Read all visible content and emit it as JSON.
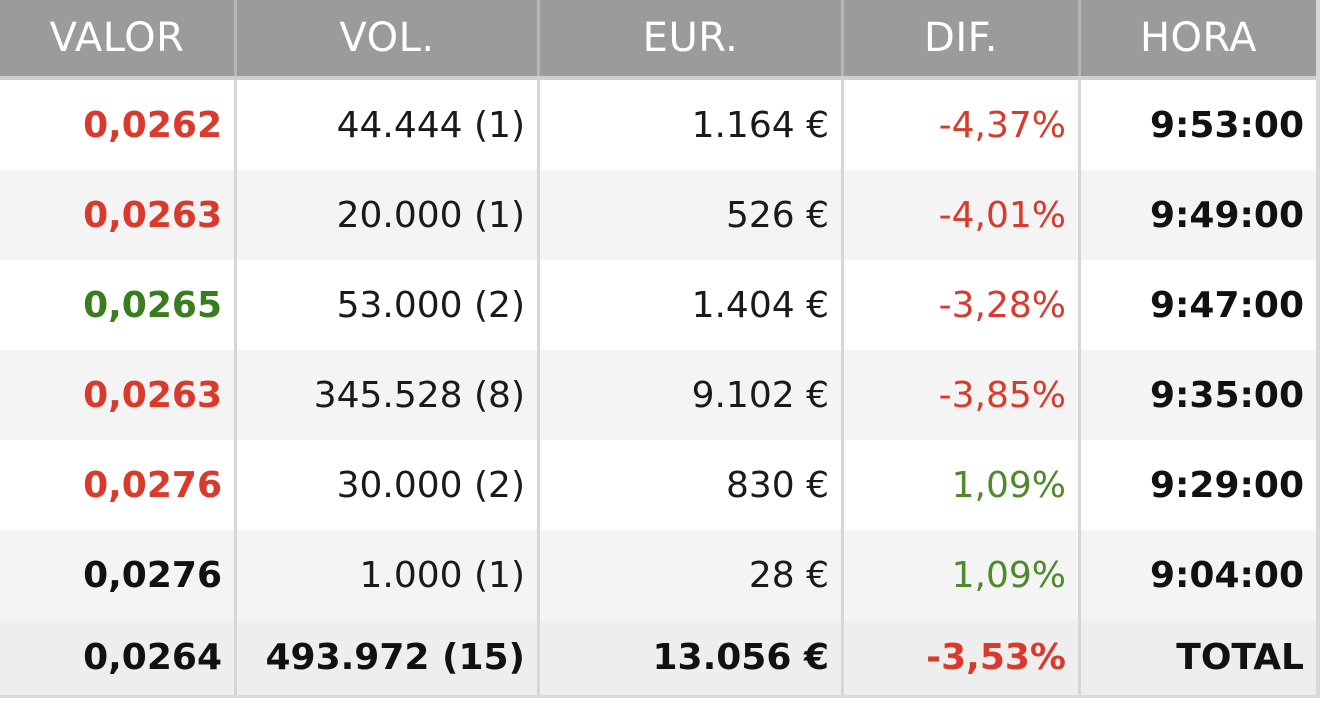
{
  "colors": {
    "red": "#d93a2b",
    "green": "#3a7d1e",
    "header_bg": "#9b9b9b"
  },
  "headers": [
    "VALOR",
    "VOL.",
    "EUR.",
    "DIF.",
    "HORA"
  ],
  "rows": [
    {
      "valor": "0,0262",
      "valor_color": "red",
      "vol": "44.444 (1)",
      "eur": "1.164 €",
      "dif": "-4,37%",
      "dif_color": "red",
      "hora": "9:53:00"
    },
    {
      "valor": "0,0263",
      "valor_color": "red",
      "vol": "20.000 (1)",
      "eur": "526 €",
      "dif": "-4,01%",
      "dif_color": "red",
      "hora": "9:49:00"
    },
    {
      "valor": "0,0265",
      "valor_color": "green",
      "vol": "53.000 (2)",
      "eur": "1.404 €",
      "dif": "-3,28%",
      "dif_color": "red",
      "hora": "9:47:00"
    },
    {
      "valor": "0,0263",
      "valor_color": "red",
      "vol": "345.528 (8)",
      "eur": "9.102 €",
      "dif": "-3,85%",
      "dif_color": "red",
      "hora": "9:35:00"
    },
    {
      "valor": "0,0276",
      "valor_color": "red",
      "vol": "30.000 (2)",
      "eur": "830 €",
      "dif": "1,09%",
      "dif_color": "green",
      "hora": "9:29:00"
    },
    {
      "valor": "0,0276",
      "valor_color": "black",
      "vol": "1.000 (1)",
      "eur": "28 €",
      "dif": "1,09%",
      "dif_color": "green",
      "hora": "9:04:00"
    }
  ],
  "total": {
    "valor": "0,0264",
    "vol": "493.972 (15)",
    "eur": "13.056 €",
    "dif": "-3,53%",
    "dif_color": "red",
    "hora": "TOTAL"
  }
}
